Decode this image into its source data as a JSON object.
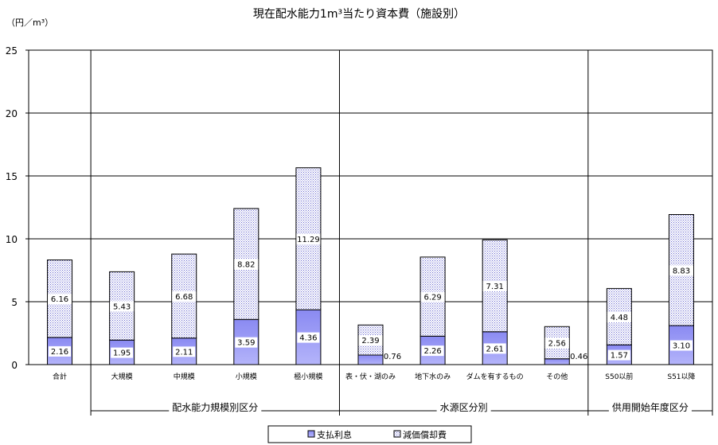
{
  "chart_data": {
    "type": "bar",
    "stacked": true,
    "title": "現在配水能力1m³当たり資本費（施設別）",
    "ylabel": "（円／m³）",
    "ylim": [
      0,
      25
    ],
    "yticks": [
      0,
      5,
      10,
      15,
      20,
      25
    ],
    "grid": true,
    "legend_position": "bottom",
    "categories": [
      "合計",
      "大規模",
      "中規模",
      "小規模",
      "極小規模",
      "表・伏・湖のみ",
      "地下水のみ",
      "ダムを有するもの",
      "その他",
      "S50以前",
      "S51以降"
    ],
    "groups": [
      {
        "label": "配水能力規模別区分",
        "categories": [
          1,
          2,
          3,
          4
        ]
      },
      {
        "label": "水源区分別",
        "categories": [
          5,
          6,
          7,
          8
        ]
      },
      {
        "label": "供用開始年度区分",
        "categories": [
          9,
          10
        ]
      }
    ],
    "series": [
      {
        "name": "支払利息",
        "values": [
          2.16,
          1.95,
          2.11,
          3.59,
          4.36,
          0.76,
          2.26,
          2.61,
          0.46,
          1.57,
          3.1
        ],
        "labels": [
          "2.16",
          "1.95",
          "2.11",
          "3.59",
          "4.36",
          "0.76",
          "2.26",
          "2.61",
          "0.46",
          "1.57",
          "3.10"
        ],
        "color": "#9d9df7"
      },
      {
        "name": "減価償却費",
        "values": [
          6.16,
          5.43,
          6.68,
          8.82,
          11.29,
          2.39,
          6.29,
          7.31,
          2.56,
          4.48,
          8.83
        ],
        "labels": [
          "6.16",
          "5.43",
          "6.68",
          "8.82",
          "11.29",
          "2.39",
          "6.29",
          "7.31",
          "2.56",
          "4.48",
          "8.83"
        ],
        "color": "#c8c8f0"
      }
    ]
  }
}
